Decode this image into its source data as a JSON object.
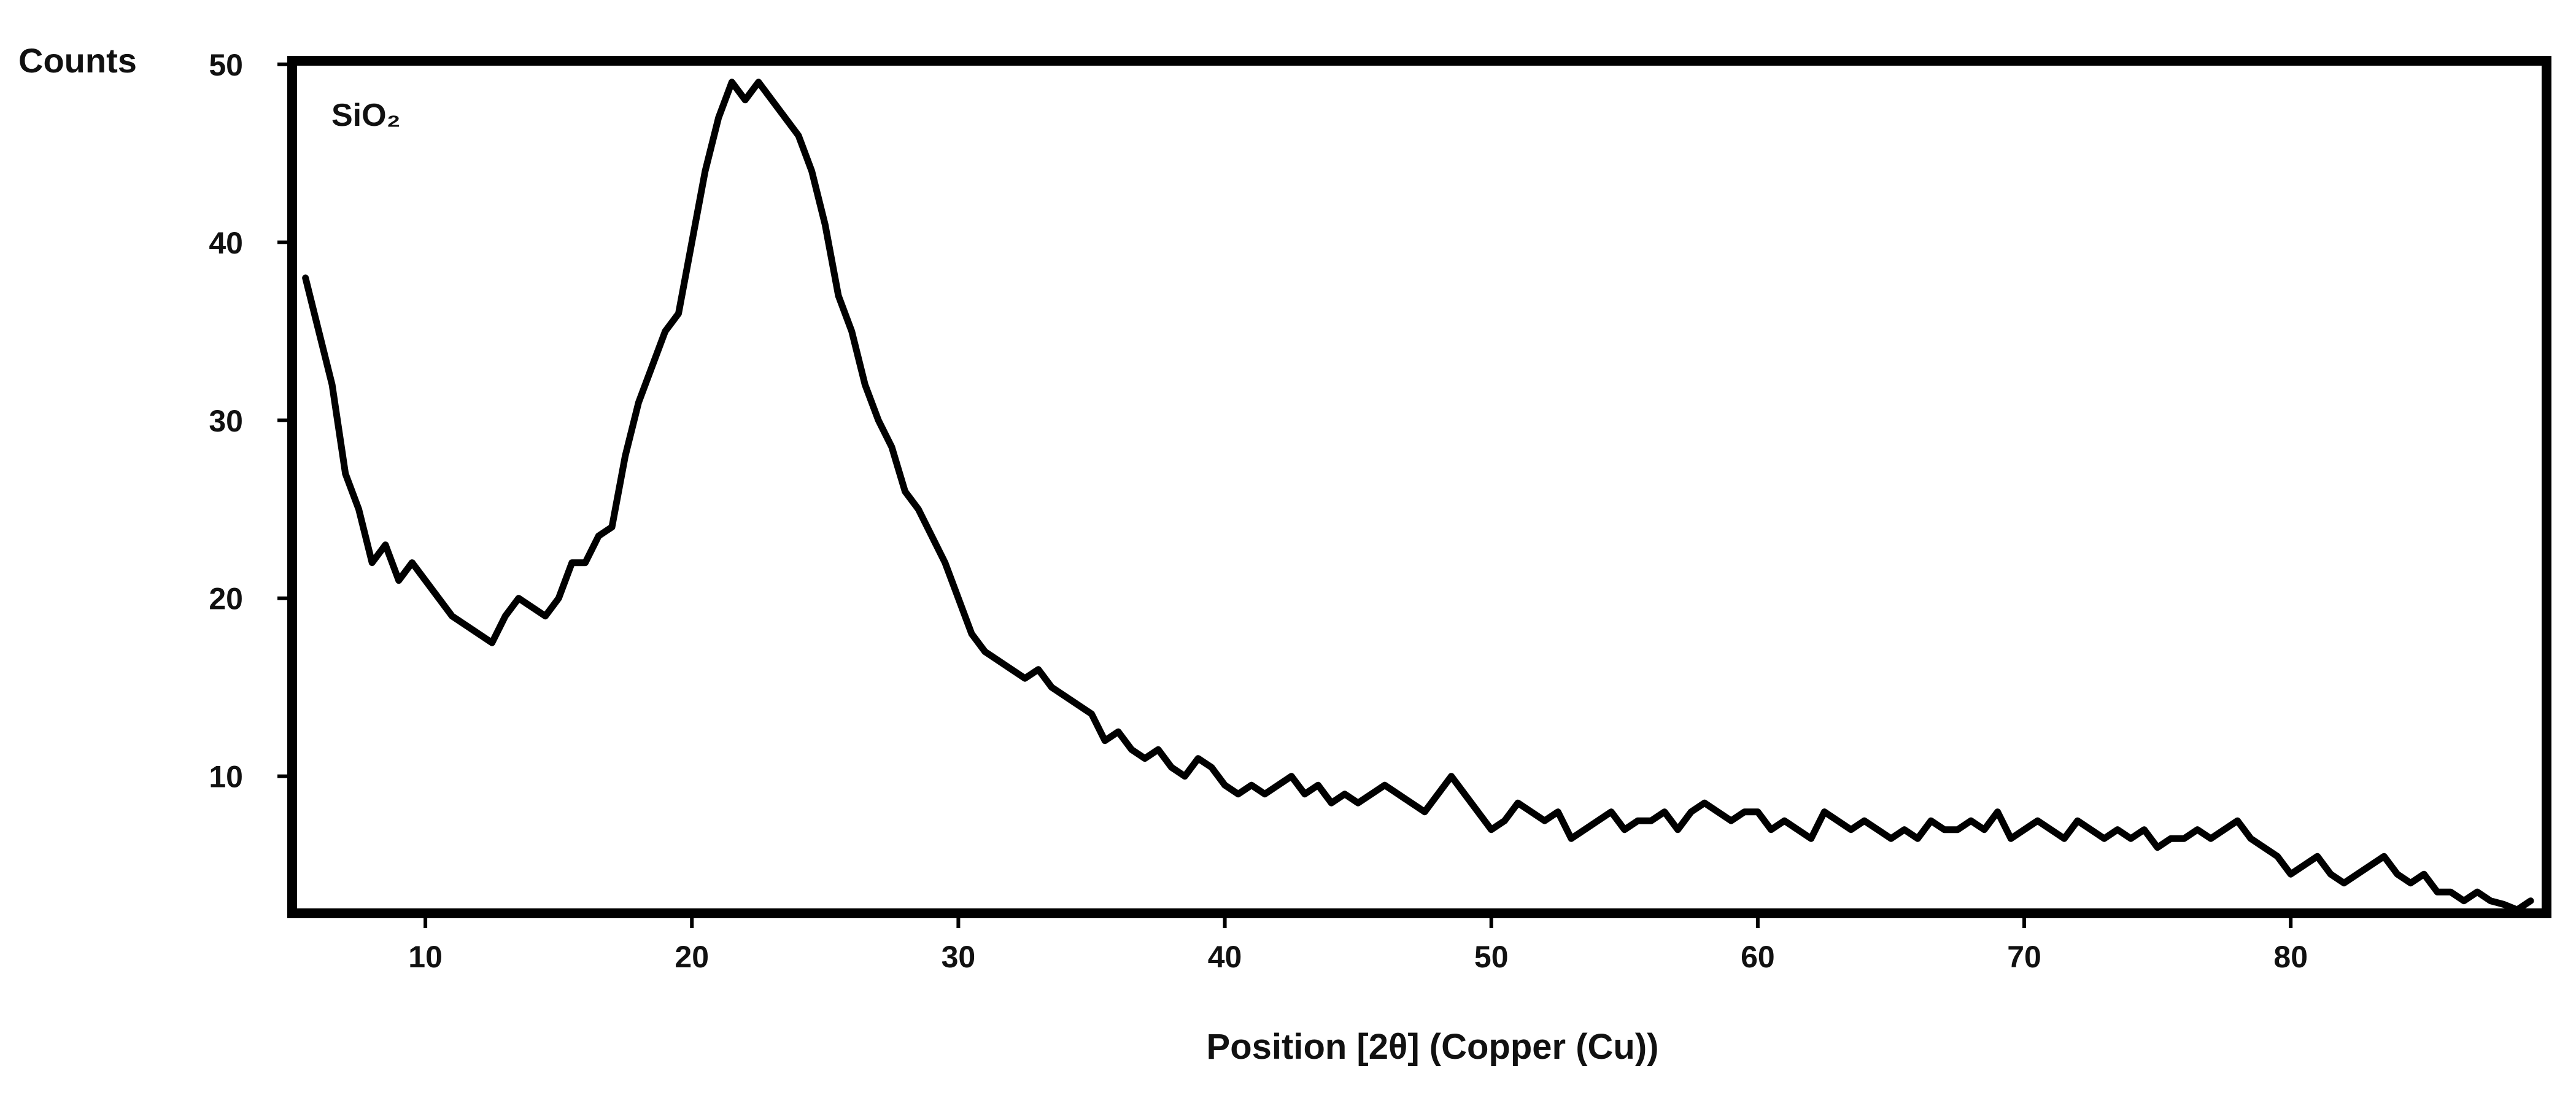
{
  "chart_data": {
    "type": "line",
    "ylabel": "Counts",
    "xlabel": "Position [2θ] (Copper (Cu))",
    "annotation": "SiO₂",
    "color": "#000000",
    "xlim": [
      5,
      89.6
    ],
    "ylim": [
      2.3,
      50.2
    ],
    "xticks": [
      10,
      20,
      30,
      40,
      50,
      60,
      70,
      80
    ],
    "yticks": [
      10,
      20,
      30,
      40,
      50
    ],
    "x": [
      5.5,
      6,
      6.5,
      7,
      7.5,
      8,
      8.5,
      9,
      9.5,
      10,
      10.5,
      11,
      11.5,
      12,
      12.5,
      13,
      13.5,
      14,
      14.5,
      15,
      15.5,
      16,
      16.5,
      17,
      17.5,
      18,
      18.5,
      19,
      19.5,
      20,
      20.5,
      21,
      21.5,
      22,
      22.5,
      23,
      23.5,
      24,
      24.5,
      25,
      25.5,
      26,
      26.5,
      27,
      27.5,
      28,
      28.5,
      29,
      29.5,
      30,
      30.5,
      31,
      31.5,
      32,
      32.5,
      33,
      33.5,
      34,
      34.5,
      35,
      35.5,
      36,
      36.5,
      37,
      37.5,
      38,
      38.5,
      39,
      39.5,
      40,
      40.5,
      41,
      41.5,
      42,
      42.5,
      43,
      43.5,
      44,
      44.5,
      45,
      45.5,
      46,
      46.5,
      47,
      47.5,
      48,
      48.5,
      49,
      49.5,
      50,
      50.5,
      51,
      51.5,
      52,
      52.5,
      53,
      53.5,
      54,
      54.5,
      55,
      55.5,
      56,
      56.5,
      57,
      57.5,
      58,
      58.5,
      59,
      59.5,
      60,
      60.5,
      61,
      61.5,
      62,
      62.5,
      63,
      63.5,
      64,
      64.5,
      65,
      65.5,
      66,
      66.5,
      67,
      67.5,
      68,
      68.5,
      69,
      69.5,
      70,
      70.5,
      71,
      71.5,
      72,
      72.5,
      73,
      73.5,
      74,
      74.5,
      75,
      75.5,
      76,
      76.5,
      77,
      77.5,
      78,
      78.5,
      79,
      79.5,
      80,
      80.5,
      81,
      81.5,
      82,
      82.5,
      83,
      83.5,
      84,
      84.5,
      85,
      85.5,
      86,
      86.5,
      87,
      87.5,
      88,
      88.5,
      89
    ],
    "values": [
      38,
      35,
      32,
      27,
      25,
      22,
      23,
      21,
      22,
      21,
      20,
      19,
      18.5,
      18,
      17.5,
      19,
      20,
      19.5,
      19,
      20,
      22,
      22,
      23.5,
      24,
      28,
      31,
      33,
      35,
      36,
      40,
      44,
      47,
      49,
      48,
      49,
      48,
      47,
      46,
      44,
      41,
      37,
      35,
      32,
      30,
      28.5,
      26,
      25,
      23.5,
      22,
      20,
      18,
      17,
      16.5,
      16,
      15.5,
      16,
      15,
      14.5,
      14,
      13.5,
      12,
      12.5,
      11.5,
      11,
      11.5,
      10.5,
      10,
      11,
      10.5,
      9.5,
      9,
      9.5,
      9,
      9.5,
      10,
      9,
      9.5,
      8.5,
      9,
      8.5,
      9,
      9.5,
      9,
      8.5,
      8,
      9,
      10,
      9,
      8,
      7,
      7.5,
      8.5,
      8,
      7.5,
      8,
      6.5,
      7,
      7.5,
      8,
      7,
      7.5,
      7.5,
      8,
      7,
      8,
      8.5,
      8,
      7.5,
      8,
      8,
      7,
      7.5,
      7,
      6.5,
      8,
      7.5,
      7,
      7.5,
      7,
      6.5,
      7,
      6.5,
      7.5,
      7,
      7,
      7.5,
      7,
      8,
      6.5,
      7,
      7.5,
      7,
      6.5,
      7.5,
      7,
      6.5,
      7,
      6.5,
      7,
      6,
      6.5,
      6.5,
      7,
      6.5,
      7,
      7.5,
      6.5,
      6,
      5.5,
      4.5,
      5,
      5.5,
      4.5,
      4,
      4.5,
      5,
      5.5,
      4.5,
      4,
      4.5,
      3.5,
      3.5,
      3,
      3.5,
      3,
      2.8,
      2.5,
      3
    ]
  }
}
